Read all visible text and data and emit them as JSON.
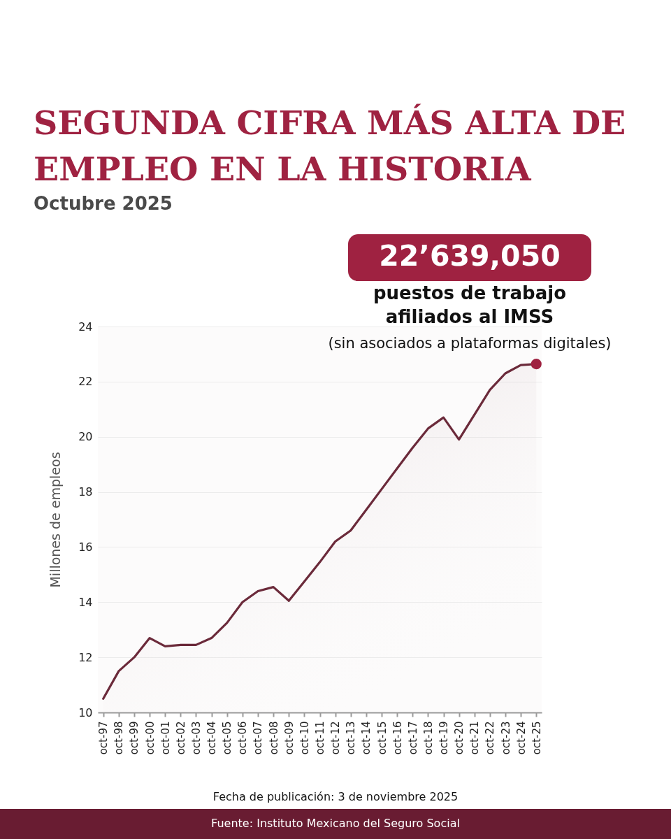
{
  "chart_data": {
    "type": "area",
    "title": "SEGUNDA CIFRA MÁS ALTA DE EMPLEO EN LA HISTORIA",
    "subtitle": "Octubre 2025",
    "ylabel": "Millones de empleos",
    "categories": [
      "oct-97",
      "oct-98",
      "oct-99",
      "oct-00",
      "oct-01",
      "oct-02",
      "oct-03",
      "oct-04",
      "oct-05",
      "oct-06",
      "oct-07",
      "oct-08",
      "oct-09",
      "oct-10",
      "oct-11",
      "oct-12",
      "oct-13",
      "oct-14",
      "oct-15",
      "oct-16",
      "oct-17",
      "oct-18",
      "oct-19",
      "oct-20",
      "oct-21",
      "oct-22",
      "oct-23",
      "oct-24",
      "oct-25"
    ],
    "series": [
      {
        "color": "#6b2a3a",
        "values": [
          10.5,
          11.5,
          12.0,
          12.7,
          12.4,
          12.45,
          12.45,
          12.7,
          13.25,
          14.0,
          14.4,
          14.55,
          14.05,
          14.75,
          15.45,
          16.2,
          16.6,
          17.35,
          18.1,
          18.85,
          19.6,
          20.3,
          20.7,
          19.9,
          20.8,
          21.7,
          22.3,
          22.6,
          22.64
        ]
      },
      {
        "type": "scatter",
        "color": "#9f2241",
        "marker": "circle",
        "x": [
          "oct-25"
        ],
        "values": [
          22.64
        ]
      }
    ],
    "ylim": [
      10,
      24
    ],
    "yticks": [
      10,
      12,
      14,
      16,
      18,
      20,
      22,
      24
    ],
    "grid": "y",
    "annotations": [
      "22’639,050",
      "puestos de trabajo\nafiliados al IMSS",
      "(sin asociados a plataformas digitales)",
      "Fecha de publicación: 3 de noviembre 2025",
      "Fuente: Instituto Mexicano del Seguro Social"
    ]
  }
}
